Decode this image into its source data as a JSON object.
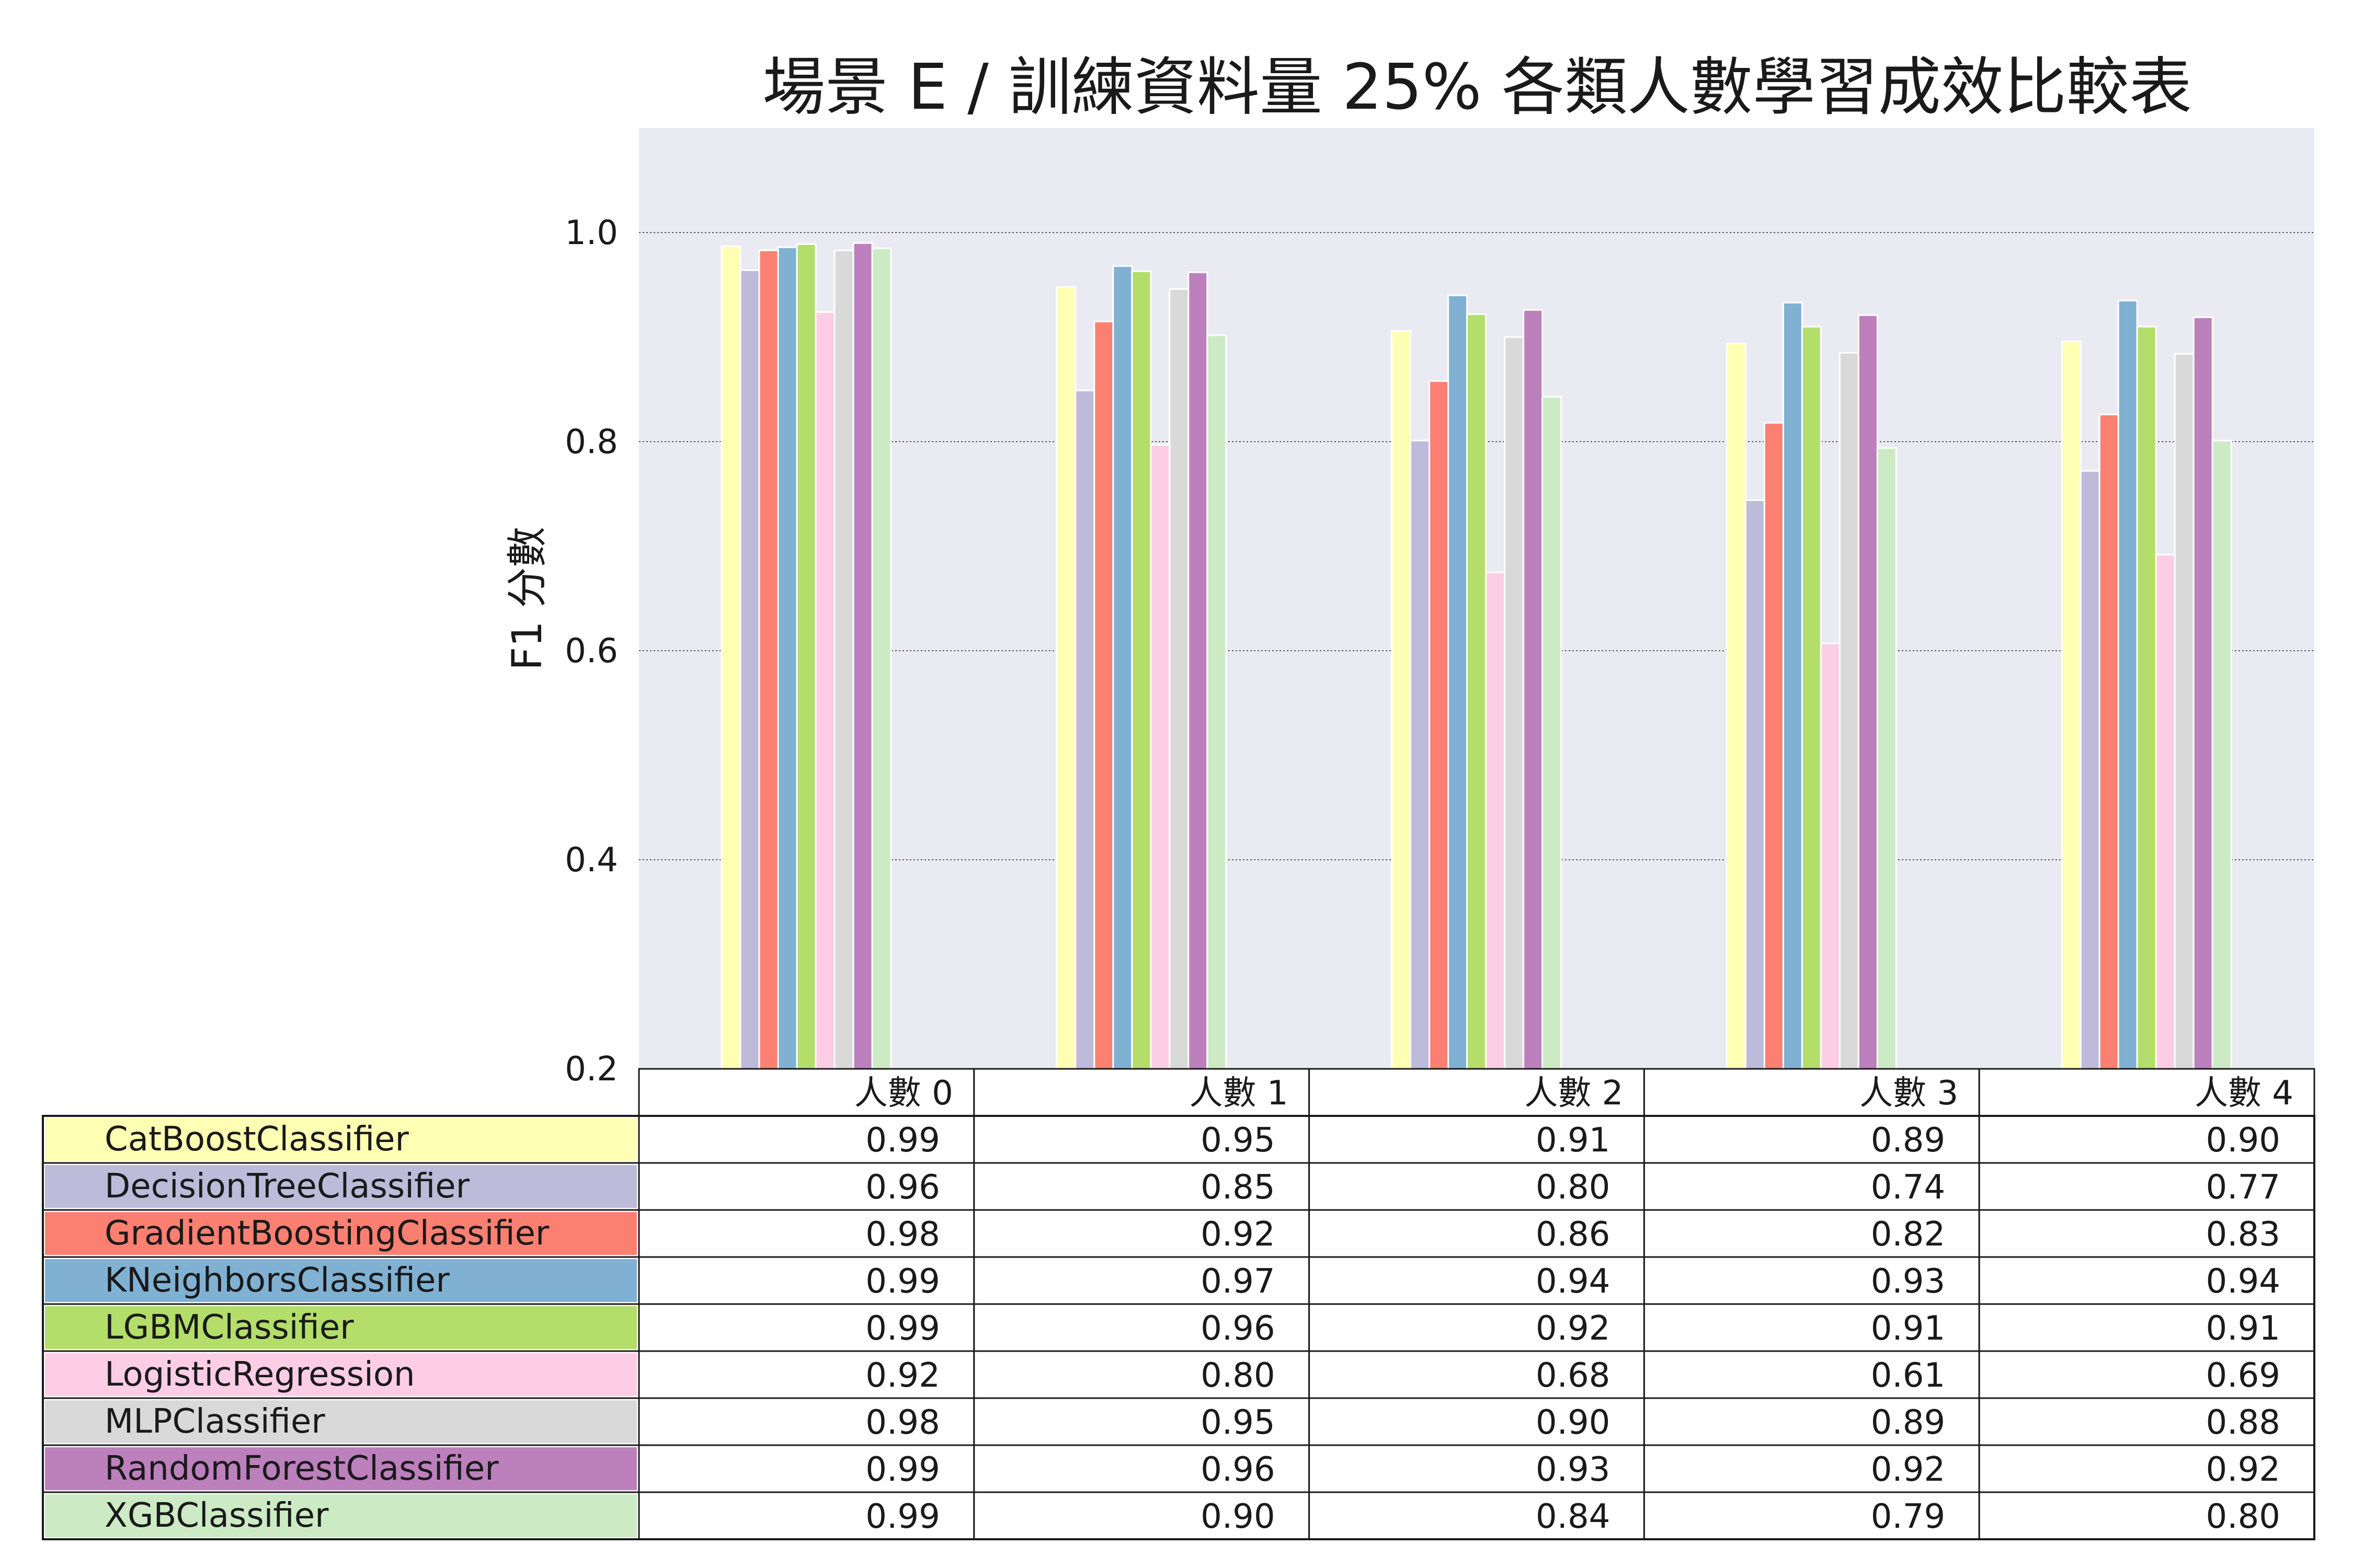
{
  "chart_data": {
    "type": "bar",
    "title": "場景 E / 訓練資料量 25% 各類人數學習成效比較表",
    "xlabel": "",
    "ylabel": "F1 分數",
    "ylim": [
      0.2,
      1.1
    ],
    "yticks": [
      "0.2",
      "0.4",
      "0.6",
      "0.8",
      "1.0"
    ],
    "grid": true,
    "legend": "table-bottom",
    "categories": [
      "人數 0",
      "人數 1",
      "人數 2",
      "人數 3",
      "人數 4"
    ],
    "series": [
      {
        "name": "CatBoostClassifier",
        "color": "#ffffb3",
        "values": [
          0.987,
          0.948,
          0.906,
          0.894,
          0.896
        ],
        "labels": [
          "0.99",
          "0.95",
          "0.91",
          "0.89",
          "0.90"
        ]
      },
      {
        "name": "DecisionTreeClassifier",
        "color": "#bebada",
        "values": [
          0.964,
          0.849,
          0.801,
          0.744,
          0.772
        ],
        "labels": [
          "0.96",
          "0.85",
          "0.80",
          "0.74",
          "0.77"
        ]
      },
      {
        "name": "GradientBoostingClassifier",
        "color": "#fb8072",
        "values": [
          0.983,
          0.915,
          0.858,
          0.818,
          0.826
        ],
        "labels": [
          "0.98",
          "0.92",
          "0.86",
          "0.82",
          "0.83"
        ]
      },
      {
        "name": "KNeighborsClassifier",
        "color": "#80b1d3",
        "values": [
          0.986,
          0.968,
          0.94,
          0.933,
          0.935
        ],
        "labels": [
          "0.99",
          "0.97",
          "0.94",
          "0.93",
          "0.94"
        ]
      },
      {
        "name": "LGBMClassifier",
        "color": "#b3de69",
        "values": [
          0.989,
          0.963,
          0.922,
          0.91,
          0.91
        ],
        "labels": [
          "0.99",
          "0.96",
          "0.92",
          "0.91",
          "0.91"
        ]
      },
      {
        "name": "LogisticRegression",
        "color": "#fccde5",
        "values": [
          0.924,
          0.797,
          0.675,
          0.607,
          0.692
        ],
        "labels": [
          "0.92",
          "0.80",
          "0.68",
          "0.61",
          "0.69"
        ]
      },
      {
        "name": "MLPClassifier",
        "color": "#d9d9d9",
        "values": [
          0.983,
          0.946,
          0.9,
          0.885,
          0.884
        ],
        "labels": [
          "0.98",
          "0.95",
          "0.90",
          "0.89",
          "0.88"
        ]
      },
      {
        "name": "RandomForestClassifier",
        "color": "#bc80bd",
        "values": [
          0.99,
          0.962,
          0.926,
          0.921,
          0.919
        ],
        "labels": [
          "0.99",
          "0.96",
          "0.93",
          "0.92",
          "0.92"
        ]
      },
      {
        "name": "XGBClassifier",
        "color": "#ccebc5",
        "values": [
          0.985,
          0.902,
          0.843,
          0.794,
          0.801
        ],
        "labels": [
          "0.99",
          "0.90",
          "0.84",
          "0.79",
          "0.80"
        ]
      }
    ],
    "plot_background": "#eaeaf2"
  }
}
